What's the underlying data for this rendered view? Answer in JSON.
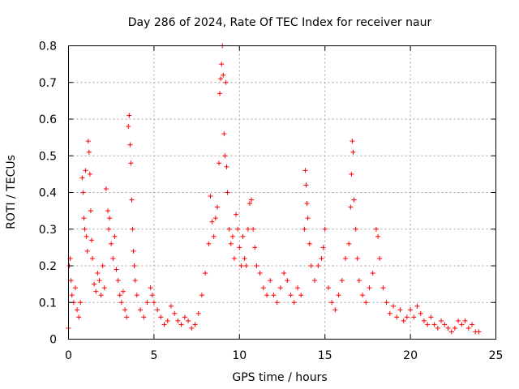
{
  "chart_data": {
    "type": "scatter",
    "title": "Day 286 of 2024, Rate Of TEC Index for receiver naur",
    "xlabel": "GPS time / hours",
    "ylabel": "ROTI / TECUs",
    "xlim": [
      0,
      25
    ],
    "ylim": [
      0,
      0.8
    ],
    "grid": true,
    "marker": "+",
    "xticks": [
      0,
      5,
      10,
      15,
      20,
      25
    ],
    "xtick_labels": [
      "0",
      "5",
      "10",
      "15",
      "20",
      "25"
    ],
    "yticks": [
      0,
      0.1,
      0.2,
      0.3,
      0.4,
      0.5,
      0.6,
      0.7,
      0.8
    ],
    "ytick_labels": [
      "0",
      "0.1",
      "0.2",
      "0.3",
      "0.4",
      "0.5",
      "0.6",
      "0.7",
      "0.8"
    ],
    "series": [
      {
        "name": "ROTI",
        "color": "#ff0000",
        "points": [
          [
            0.0,
            0.03
          ],
          [
            0.05,
            0.2
          ],
          [
            0.1,
            0.22
          ],
          [
            0.15,
            0.16
          ],
          [
            0.2,
            0.12
          ],
          [
            0.3,
            0.1
          ],
          [
            0.4,
            0.14
          ],
          [
            0.5,
            0.08
          ],
          [
            0.6,
            0.06
          ],
          [
            0.7,
            0.1
          ],
          [
            0.8,
            0.44
          ],
          [
            0.85,
            0.4
          ],
          [
            0.9,
            0.33
          ],
          [
            0.95,
            0.3
          ],
          [
            1.0,
            0.46
          ],
          [
            1.05,
            0.28
          ],
          [
            1.1,
            0.24
          ],
          [
            1.15,
            0.54
          ],
          [
            1.2,
            0.51
          ],
          [
            1.25,
            0.45
          ],
          [
            1.3,
            0.35
          ],
          [
            1.35,
            0.27
          ],
          [
            1.4,
            0.22
          ],
          [
            1.5,
            0.15
          ],
          [
            1.6,
            0.13
          ],
          [
            1.7,
            0.18
          ],
          [
            1.8,
            0.16
          ],
          [
            1.9,
            0.12
          ],
          [
            2.0,
            0.2
          ],
          [
            2.1,
            0.14
          ],
          [
            2.2,
            0.41
          ],
          [
            2.3,
            0.35
          ],
          [
            2.35,
            0.3
          ],
          [
            2.4,
            0.33
          ],
          [
            2.5,
            0.26
          ],
          [
            2.6,
            0.22
          ],
          [
            2.7,
            0.28
          ],
          [
            2.8,
            0.19
          ],
          [
            2.9,
            0.16
          ],
          [
            3.0,
            0.12
          ],
          [
            3.1,
            0.1
          ],
          [
            3.2,
            0.13
          ],
          [
            3.3,
            0.08
          ],
          [
            3.4,
            0.06
          ],
          [
            3.5,
            0.58
          ],
          [
            3.55,
            0.61
          ],
          [
            3.6,
            0.53
          ],
          [
            3.65,
            0.48
          ],
          [
            3.7,
            0.38
          ],
          [
            3.75,
            0.3
          ],
          [
            3.8,
            0.24
          ],
          [
            3.85,
            0.2
          ],
          [
            3.9,
            0.16
          ],
          [
            4.0,
            0.12
          ],
          [
            4.2,
            0.08
          ],
          [
            4.4,
            0.06
          ],
          [
            4.6,
            0.1
          ],
          [
            4.8,
            0.14
          ],
          [
            4.9,
            0.12
          ],
          [
            5.0,
            0.1
          ],
          [
            5.2,
            0.08
          ],
          [
            5.4,
            0.06
          ],
          [
            5.6,
            0.04
          ],
          [
            5.8,
            0.05
          ],
          [
            6.0,
            0.09
          ],
          [
            6.2,
            0.07
          ],
          [
            6.4,
            0.05
          ],
          [
            6.6,
            0.04
          ],
          [
            6.8,
            0.06
          ],
          [
            7.0,
            0.05
          ],
          [
            7.2,
            0.03
          ],
          [
            7.4,
            0.04
          ],
          [
            7.6,
            0.07
          ],
          [
            7.8,
            0.12
          ],
          [
            8.0,
            0.18
          ],
          [
            8.2,
            0.26
          ],
          [
            8.3,
            0.39
          ],
          [
            8.4,
            0.32
          ],
          [
            8.5,
            0.28
          ],
          [
            8.6,
            0.33
          ],
          [
            8.7,
            0.36
          ],
          [
            8.8,
            0.48
          ],
          [
            8.85,
            0.67
          ],
          [
            8.9,
            0.71
          ],
          [
            8.95,
            0.75
          ],
          [
            9.0,
            0.8
          ],
          [
            9.05,
            0.72
          ],
          [
            9.1,
            0.56
          ],
          [
            9.15,
            0.5
          ],
          [
            9.2,
            0.7
          ],
          [
            9.25,
            0.47
          ],
          [
            9.3,
            0.4
          ],
          [
            9.4,
            0.3
          ],
          [
            9.5,
            0.26
          ],
          [
            9.6,
            0.28
          ],
          [
            9.7,
            0.22
          ],
          [
            9.8,
            0.34
          ],
          [
            9.9,
            0.3
          ],
          [
            10.0,
            0.25
          ],
          [
            10.1,
            0.2
          ],
          [
            10.2,
            0.28
          ],
          [
            10.3,
            0.22
          ],
          [
            10.4,
            0.2
          ],
          [
            10.5,
            0.3
          ],
          [
            10.6,
            0.37
          ],
          [
            10.7,
            0.38
          ],
          [
            10.8,
            0.3
          ],
          [
            10.9,
            0.25
          ],
          [
            11.0,
            0.2
          ],
          [
            11.2,
            0.18
          ],
          [
            11.4,
            0.14
          ],
          [
            11.6,
            0.12
          ],
          [
            11.8,
            0.16
          ],
          [
            12.0,
            0.12
          ],
          [
            12.2,
            0.1
          ],
          [
            12.4,
            0.14
          ],
          [
            12.6,
            0.18
          ],
          [
            12.8,
            0.16
          ],
          [
            13.0,
            0.12
          ],
          [
            13.2,
            0.1
          ],
          [
            13.4,
            0.14
          ],
          [
            13.6,
            0.12
          ],
          [
            13.8,
            0.3
          ],
          [
            13.85,
            0.46
          ],
          [
            13.9,
            0.42
          ],
          [
            13.95,
            0.37
          ],
          [
            14.0,
            0.33
          ],
          [
            14.1,
            0.26
          ],
          [
            14.2,
            0.2
          ],
          [
            14.4,
            0.16
          ],
          [
            14.6,
            0.2
          ],
          [
            14.8,
            0.22
          ],
          [
            14.9,
            0.25
          ],
          [
            15.0,
            0.3
          ],
          [
            15.2,
            0.14
          ],
          [
            15.4,
            0.1
          ],
          [
            15.6,
            0.08
          ],
          [
            15.8,
            0.12
          ],
          [
            16.0,
            0.16
          ],
          [
            16.2,
            0.22
          ],
          [
            16.4,
            0.26
          ],
          [
            16.5,
            0.36
          ],
          [
            16.55,
            0.45
          ],
          [
            16.6,
            0.54
          ],
          [
            16.65,
            0.51
          ],
          [
            16.7,
            0.38
          ],
          [
            16.8,
            0.3
          ],
          [
            16.9,
            0.22
          ],
          [
            17.0,
            0.16
          ],
          [
            17.2,
            0.12
          ],
          [
            17.4,
            0.1
          ],
          [
            17.6,
            0.14
          ],
          [
            17.8,
            0.18
          ],
          [
            18.0,
            0.3
          ],
          [
            18.1,
            0.28
          ],
          [
            18.2,
            0.22
          ],
          [
            18.4,
            0.14
          ],
          [
            18.6,
            0.1
          ],
          [
            18.8,
            0.07
          ],
          [
            19.0,
            0.09
          ],
          [
            19.2,
            0.06
          ],
          [
            19.4,
            0.08
          ],
          [
            19.6,
            0.05
          ],
          [
            19.8,
            0.06
          ],
          [
            20.0,
            0.08
          ],
          [
            20.2,
            0.06
          ],
          [
            20.4,
            0.09
          ],
          [
            20.6,
            0.07
          ],
          [
            20.8,
            0.05
          ],
          [
            21.0,
            0.04
          ],
          [
            21.2,
            0.06
          ],
          [
            21.4,
            0.04
          ],
          [
            21.6,
            0.03
          ],
          [
            21.8,
            0.05
          ],
          [
            22.0,
            0.04
          ],
          [
            22.2,
            0.03
          ],
          [
            22.4,
            0.02
          ],
          [
            22.6,
            0.03
          ],
          [
            22.8,
            0.05
          ],
          [
            23.0,
            0.04
          ],
          [
            23.2,
            0.05
          ],
          [
            23.4,
            0.03
          ],
          [
            23.6,
            0.04
          ],
          [
            23.8,
            0.02
          ],
          [
            24.0,
            0.02
          ]
        ]
      }
    ]
  }
}
